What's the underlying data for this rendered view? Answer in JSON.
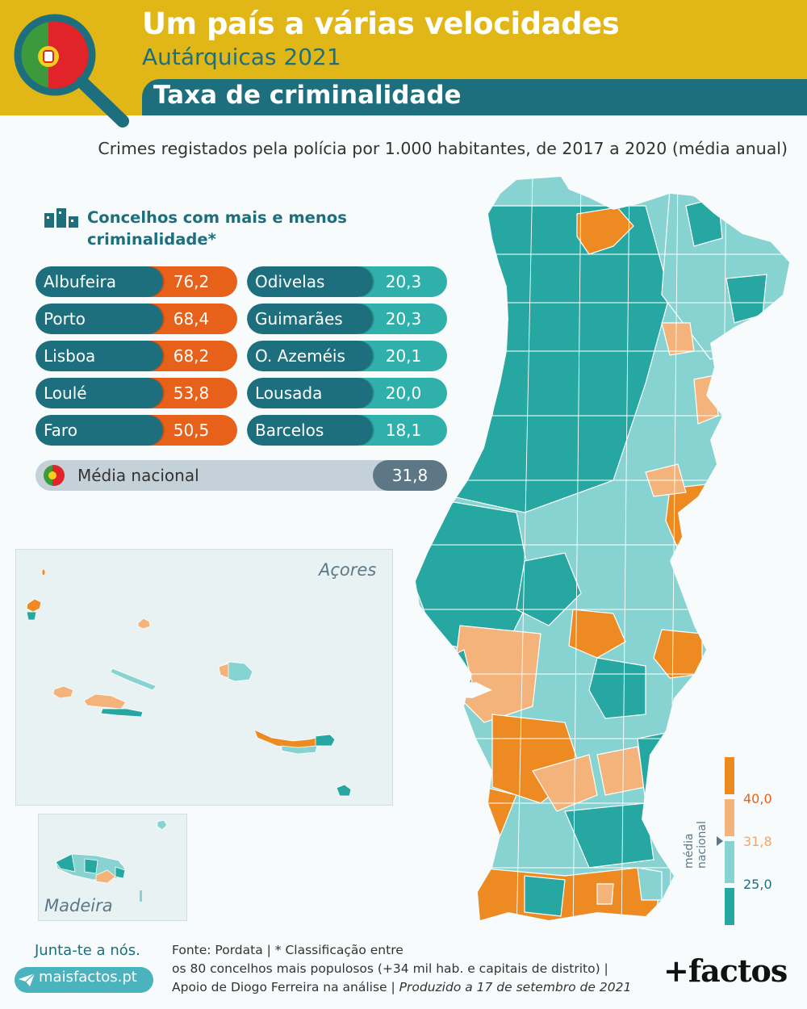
{
  "header": {
    "title": "Um país a várias velocidades",
    "subtitle": "Autárquicas 2021",
    "topic": "Taxa de criminalidade"
  },
  "description": "Crimes registados pela polícia por 1.000 habitantes, de 2017 a 2020 (média anual)",
  "ranking": {
    "title": "Concelhos com mais e menos criminalidade*",
    "highest": [
      {
        "name": "Albufeira",
        "value": "76,2"
      },
      {
        "name": "Porto",
        "value": "68,4"
      },
      {
        "name": "Lisboa",
        "value": "68,2"
      },
      {
        "name": "Loulé",
        "value": "53,8"
      },
      {
        "name": "Faro",
        "value": "50,5"
      }
    ],
    "lowest": [
      {
        "name": "Odivelas",
        "value": "20,3"
      },
      {
        "name": "Guimarães",
        "value": "20,3"
      },
      {
        "name": "O. Azeméis",
        "value": "20,1"
      },
      {
        "name": "Lousada",
        "value": "20,0"
      },
      {
        "name": "Barcelos",
        "value": "18,1"
      }
    ],
    "national_average_label": "Média nacional",
    "national_average_value": "31,8"
  },
  "insets": {
    "azores": "Açores",
    "madeira": "Madeira"
  },
  "legend": {
    "thresholds": [
      "40,0",
      "31,8",
      "25,0"
    ],
    "national_label": "média nacional",
    "colors": {
      "above_40": "#ee8a22",
      "from_31_8_to_40": "#f3b37a",
      "from_25_to_31_8": "#86d3d1",
      "below_25": "#27a7a2"
    }
  },
  "footer": {
    "join": "Junta-te a nós.",
    "site": "maisfactos.pt",
    "source_line1": "Fonte: Pordata | * Classificação entre",
    "source_line2": "os 80 concelhos mais populosos (+34 mil hab. e capitais de distrito) |",
    "source_line3a": "Apoio de Diogo Ferreira na análise | ",
    "source_line3b": "Produzido a 17 de setembro de 2021",
    "brand": "+factos"
  },
  "icons": [
    "magnifier-flag-icon",
    "bar-chart-icon",
    "portugal-flag-icon",
    "paper-plane-icon"
  ]
}
